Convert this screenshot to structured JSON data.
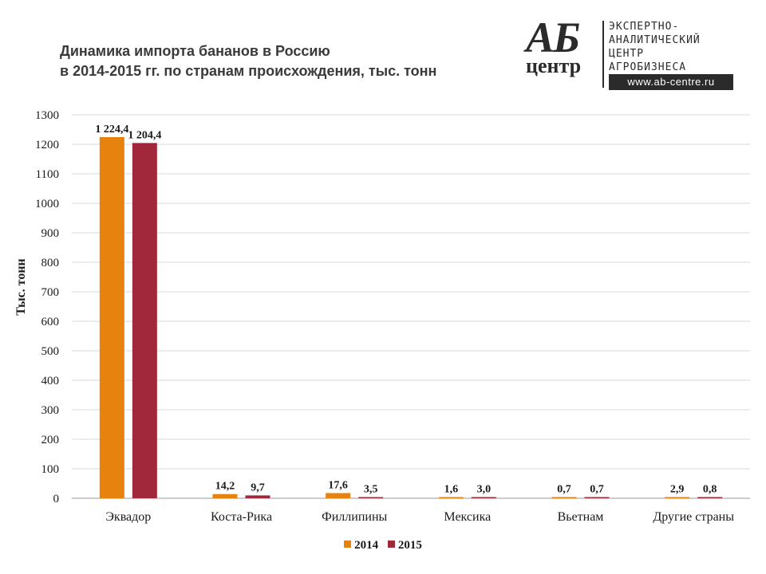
{
  "title": {
    "line1": "Динамика импорта бананов в Россию",
    "line2": "в 2014-2015 гг. по странам происхождения, тыс. тонн"
  },
  "logo": {
    "mark_top": "АБ",
    "mark_bottom": "центр",
    "line1": "ЭКСПЕРТНО-",
    "line2": "АНАЛИТИЧЕСКИЙ",
    "line3": "ЦЕНТР",
    "line4": "АГРОБИЗНЕСА",
    "url": "www.ab-centre.ru"
  },
  "chart_data": {
    "type": "bar",
    "categories": [
      "Эквадор",
      "Коста-Рика",
      "Филлипины",
      "Мексика",
      "Вьетнам",
      "Другие страны"
    ],
    "series": [
      {
        "name": "2014",
        "color": "#E8820E",
        "values": [
          1224.4,
          14.2,
          17.6,
          1.6,
          0.7,
          2.9
        ],
        "labels": [
          "1 224,4",
          "14,2",
          "17,6",
          "1,6",
          "0,7",
          "2,9"
        ]
      },
      {
        "name": "2015",
        "color": "#A1283A",
        "values": [
          1204.4,
          9.7,
          3.5,
          3.0,
          0.7,
          0.8
        ],
        "labels": [
          "1 204,4",
          "9,7",
          "3,5",
          "3,0",
          "0,7",
          "0,8"
        ]
      }
    ],
    "ylabel": "Тыс. тонн",
    "xlabel": "",
    "ylim": [
      0,
      1300
    ],
    "yticks": [
      0,
      100,
      200,
      300,
      400,
      500,
      600,
      700,
      800,
      900,
      1000,
      1100,
      1200,
      1300
    ],
    "grid": true,
    "legend_position": "bottom"
  }
}
